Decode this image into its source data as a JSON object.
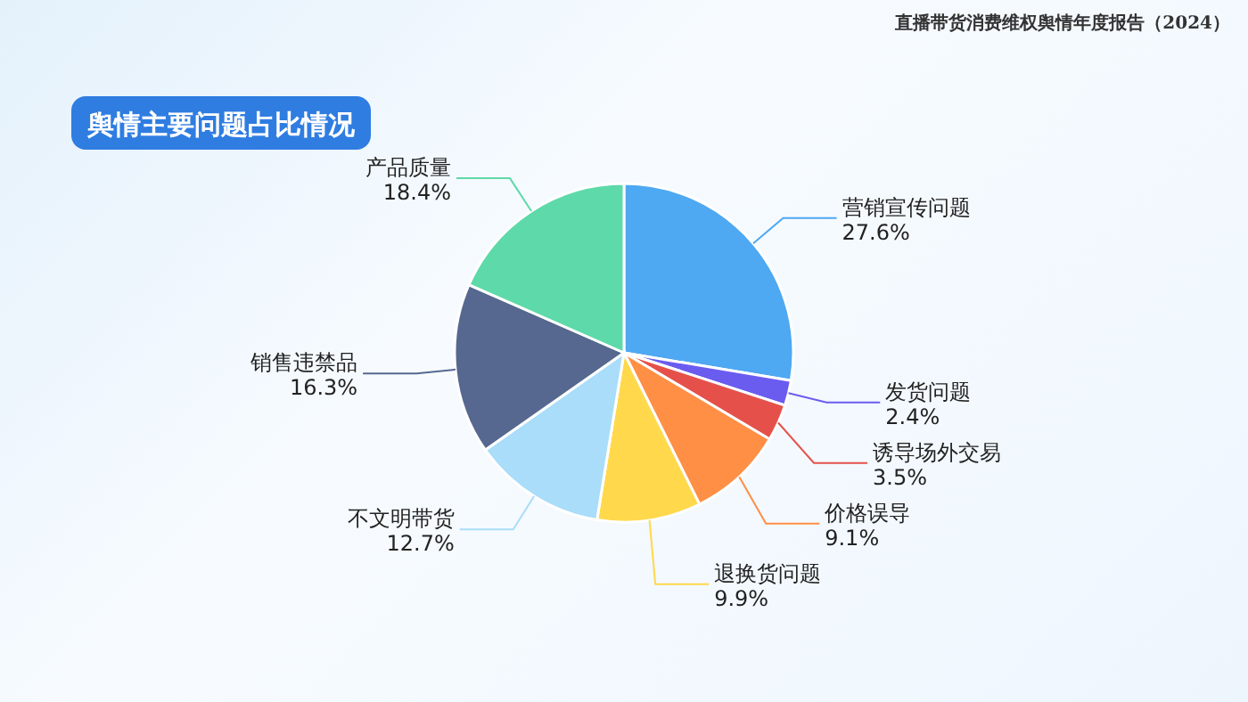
{
  "chart_data": {
    "type": "pie",
    "title": "舆情主要问题占比情况",
    "annotations": [
      "直播带货消费维权舆情年度报告（2024）"
    ],
    "categories": [
      "营销宣传问题",
      "发货问题",
      "诱导场外交易",
      "价格误导",
      "退换货问题",
      "不文明带货",
      "销售违禁品",
      "产品质量"
    ],
    "values": [
      27.6,
      2.4,
      3.5,
      9.1,
      9.9,
      12.7,
      16.3,
      18.4
    ],
    "colors": [
      "#4ea8f2",
      "#6b5cf0",
      "#e5514a",
      "#ff8f45",
      "#ffd84c",
      "#a9ddf9",
      "#56688f",
      "#5ed9a9"
    ],
    "value_labels": [
      "27.6%",
      "2.4%",
      "3.5%",
      "9.1%",
      "9.9%",
      "12.7%",
      "16.3%",
      "18.4%"
    ]
  }
}
